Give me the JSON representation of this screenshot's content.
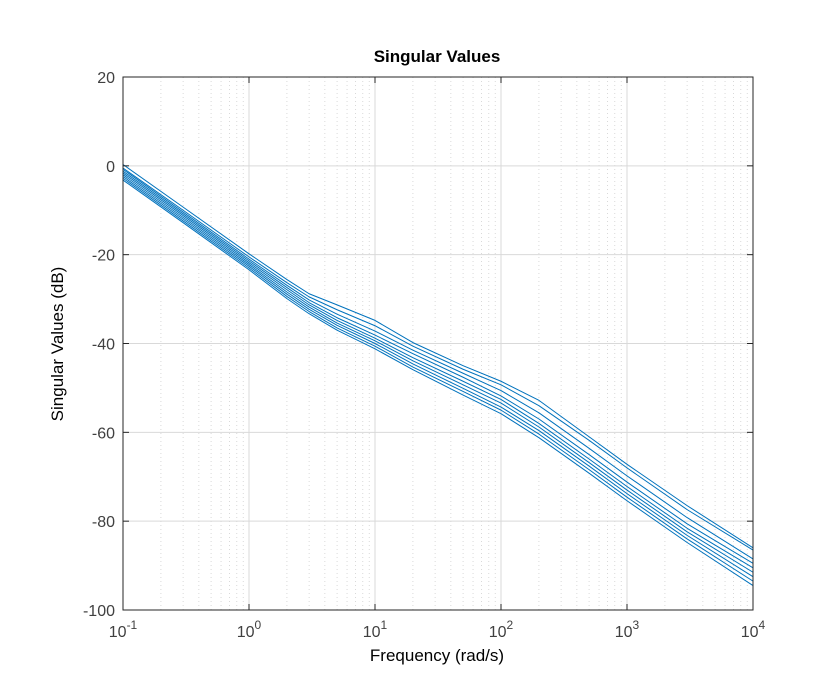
{
  "chart_data": {
    "type": "line",
    "title": "Singular Values",
    "xlabel": "Frequency (rad/s)",
    "ylabel": "Singular Values (dB)",
    "xscale": "log",
    "xlim": [
      0.1,
      10000
    ],
    "ylim": [
      -100,
      20
    ],
    "grid": true,
    "minor_grid": true,
    "legend": "none",
    "color": "#0072BD",
    "x_ticks": [
      {
        "value": 0.1,
        "base": "10",
        "exp": "-1"
      },
      {
        "value": 1,
        "base": "10",
        "exp": "0"
      },
      {
        "value": 10,
        "base": "10",
        "exp": "1"
      },
      {
        "value": 100,
        "base": "10",
        "exp": "2"
      },
      {
        "value": 1000,
        "base": "10",
        "exp": "3"
      },
      {
        "value": 10000,
        "base": "10",
        "exp": "4"
      }
    ],
    "y_ticks": [
      {
        "value": 20,
        "label": "20"
      },
      {
        "value": 0,
        "label": "0"
      },
      {
        "value": -20,
        "label": "-20"
      },
      {
        "value": -40,
        "label": "-40"
      },
      {
        "value": -60,
        "label": "-60"
      },
      {
        "value": -80,
        "label": "-80"
      },
      {
        "value": -100,
        "label": "-100"
      }
    ],
    "x": [
      0.1,
      0.3,
      1,
      2,
      3,
      5,
      10,
      20,
      50,
      100,
      200,
      500,
      1000,
      3000,
      10000
    ],
    "series": [
      {
        "values": [
          0.3,
          -9.3,
          -19.8,
          -25.6,
          -28.8,
          -31.3,
          -34.8,
          -39.8,
          -45.0,
          -48.5,
          -52.8,
          -61.0,
          -67.2,
          -76.5,
          -86.0
        ]
      },
      {
        "values": [
          -0.5,
          -10.0,
          -20.5,
          -26.3,
          -29.5,
          -32.4,
          -36.0,
          -40.6,
          -45.8,
          -49.3,
          -54.0,
          -61.8,
          -68.0,
          -77.4,
          -86.5
        ]
      },
      {
        "values": [
          -0.8,
          -10.4,
          -21.0,
          -26.9,
          -30.2,
          -33.4,
          -37.2,
          -41.5,
          -46.7,
          -50.6,
          -55.6,
          -63.6,
          -69.8,
          -79.2,
          -88.5
        ]
      },
      {
        "values": [
          -1.2,
          -10.8,
          -21.4,
          -27.4,
          -30.8,
          -34.2,
          -38.1,
          -42.3,
          -47.6,
          -51.8,
          -57.0,
          -65.0,
          -71.2,
          -80.6,
          -89.5
        ]
      },
      {
        "values": [
          -1.6,
          -11.2,
          -21.8,
          -27.9,
          -31.3,
          -34.8,
          -38.8,
          -43.2,
          -48.5,
          -52.6,
          -58.0,
          -66.0,
          -72.2,
          -81.6,
          -90.5
        ]
      },
      {
        "values": [
          -2.0,
          -11.6,
          -22.2,
          -28.4,
          -31.8,
          -35.4,
          -39.4,
          -43.9,
          -49.3,
          -53.4,
          -58.8,
          -66.8,
          -73.0,
          -82.4,
          -91.5
        ]
      },
      {
        "values": [
          -2.4,
          -12.0,
          -22.6,
          -28.9,
          -32.3,
          -35.9,
          -40.0,
          -44.6,
          -50.1,
          -54.3,
          -59.6,
          -67.6,
          -73.8,
          -83.2,
          -92.5
        ]
      },
      {
        "values": [
          -2.8,
          -12.4,
          -23.0,
          -29.4,
          -32.8,
          -36.5,
          -40.6,
          -45.3,
          -50.8,
          -55.0,
          -60.4,
          -68.4,
          -74.6,
          -84.0,
          -93.5
        ]
      },
      {
        "values": [
          -3.2,
          -12.8,
          -23.4,
          -29.9,
          -33.3,
          -37.0,
          -41.2,
          -45.9,
          -51.6,
          -55.8,
          -61.2,
          -69.2,
          -75.4,
          -84.8,
          -94.5
        ]
      }
    ]
  }
}
